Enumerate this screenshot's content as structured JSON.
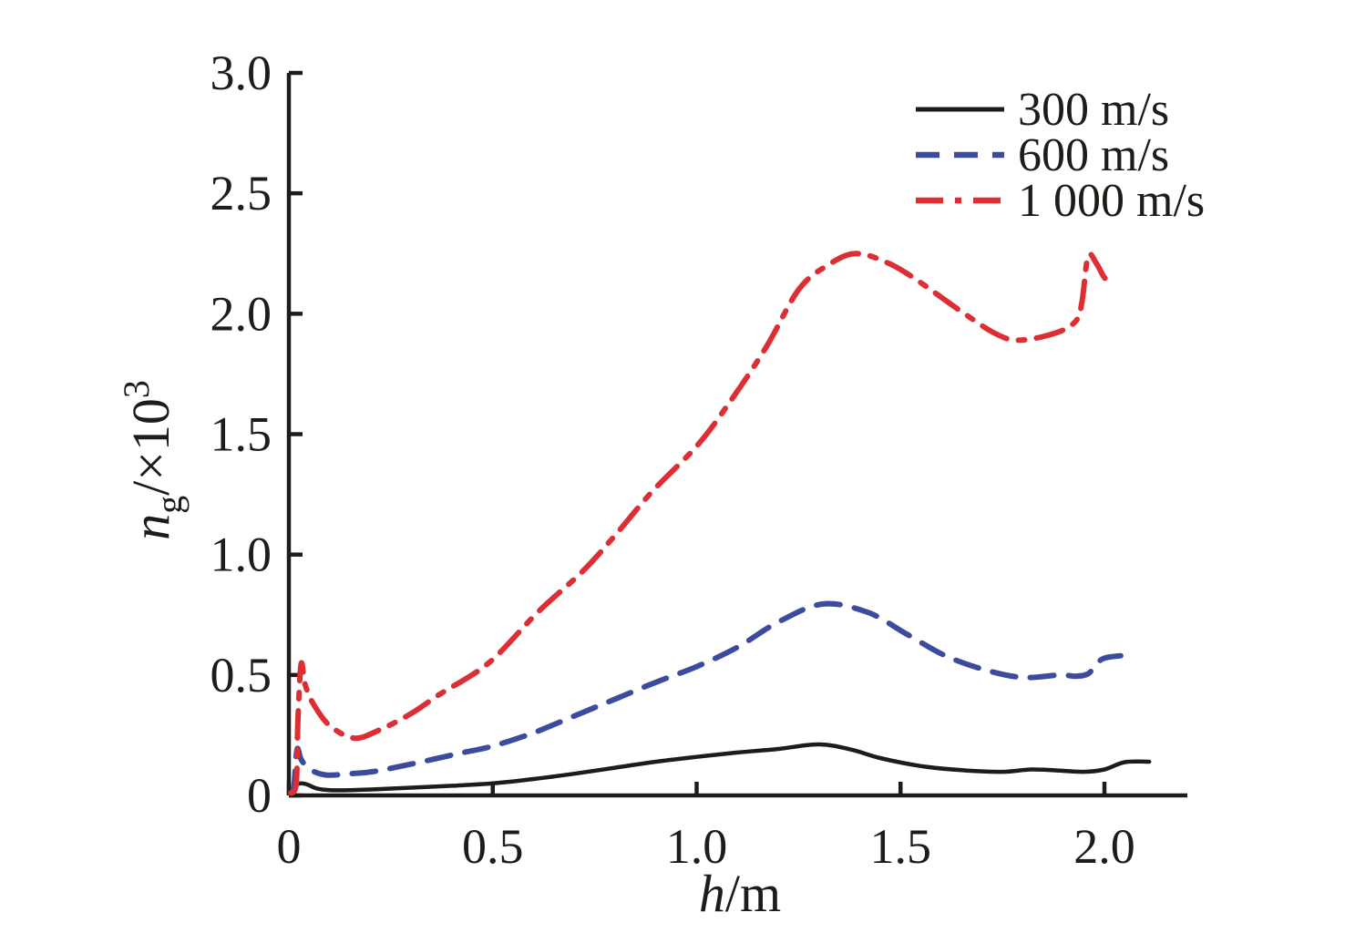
{
  "chart_data": {
    "type": "line",
    "title": "",
    "xlabel_parts": {
      "italic": "h",
      "rest": "/m"
    },
    "ylabel_parts": {
      "italic": "n",
      "sub": "g",
      "rest": "/×10",
      "sup": "3"
    },
    "xlim": [
      0,
      2.2
    ],
    "ylim": [
      0,
      3.0
    ],
    "grid": false,
    "axis_color": "#1e1b18",
    "text_color": "#1e1b18",
    "x_ticks": {
      "values": [
        0,
        0.5,
        1.0,
        1.5,
        2.0
      ],
      "labels": [
        "0",
        "0.5",
        "1.0",
        "1.5",
        "2.0"
      ]
    },
    "y_ticks": {
      "values": [
        0,
        0.5,
        1.0,
        1.5,
        2.0,
        2.5,
        3.0
      ],
      "labels": [
        "0",
        "0.5",
        "1.0",
        "1.5",
        "2.0",
        "2.5",
        "3.0"
      ]
    },
    "legend": {
      "position": "top-right"
    },
    "series": [
      {
        "name": "300 m/s",
        "color": "#1c1c1c",
        "style": "solid",
        "dash": null,
        "width": 4.5,
        "points": [
          [
            0.005,
            0.005
          ],
          [
            0.02,
            0.045
          ],
          [
            0.04,
            0.048
          ],
          [
            0.07,
            0.028
          ],
          [
            0.1,
            0.022
          ],
          [
            0.15,
            0.022
          ],
          [
            0.22,
            0.026
          ],
          [
            0.3,
            0.032
          ],
          [
            0.4,
            0.04
          ],
          [
            0.5,
            0.05
          ],
          [
            0.6,
            0.068
          ],
          [
            0.7,
            0.09
          ],
          [
            0.8,
            0.115
          ],
          [
            0.9,
            0.14
          ],
          [
            1.0,
            0.16
          ],
          [
            1.1,
            0.178
          ],
          [
            1.2,
            0.193
          ],
          [
            1.3,
            0.212
          ],
          [
            1.38,
            0.19
          ],
          [
            1.45,
            0.155
          ],
          [
            1.55,
            0.122
          ],
          [
            1.65,
            0.105
          ],
          [
            1.75,
            0.098
          ],
          [
            1.82,
            0.108
          ],
          [
            1.88,
            0.104
          ],
          [
            1.95,
            0.098
          ],
          [
            2.0,
            0.108
          ],
          [
            2.05,
            0.138
          ],
          [
            2.11,
            0.14
          ]
        ]
      },
      {
        "name": "600 m/s",
        "color": "#3c4b9e",
        "style": "dashed",
        "dash": [
          26,
          16
        ],
        "width": 6,
        "points": [
          [
            0.005,
            0.01
          ],
          [
            0.012,
            0.03
          ],
          [
            0.02,
            0.19
          ],
          [
            0.03,
            0.15
          ],
          [
            0.05,
            0.11
          ],
          [
            0.09,
            0.085
          ],
          [
            0.15,
            0.09
          ],
          [
            0.21,
            0.1
          ],
          [
            0.3,
            0.13
          ],
          [
            0.42,
            0.175
          ],
          [
            0.5,
            0.205
          ],
          [
            0.6,
            0.26
          ],
          [
            0.7,
            0.33
          ],
          [
            0.8,
            0.4
          ],
          [
            0.9,
            0.47
          ],
          [
            1.0,
            0.535
          ],
          [
            1.1,
            0.615
          ],
          [
            1.2,
            0.72
          ],
          [
            1.31,
            0.795
          ],
          [
            1.42,
            0.76
          ],
          [
            1.51,
            0.675
          ],
          [
            1.61,
            0.58
          ],
          [
            1.71,
            0.52
          ],
          [
            1.8,
            0.49
          ],
          [
            1.89,
            0.5
          ],
          [
            1.93,
            0.495
          ],
          [
            1.96,
            0.505
          ],
          [
            1.98,
            0.545
          ],
          [
            2.0,
            0.57
          ],
          [
            2.04,
            0.58
          ]
        ]
      },
      {
        "name": "1 000 m/s",
        "color": "#dd2f33",
        "style": "dashdot",
        "dash": [
          30,
          13,
          7,
          13
        ],
        "width": 6,
        "points": [
          [
            0.005,
            0.01
          ],
          [
            0.018,
            0.05
          ],
          [
            0.022,
            0.3
          ],
          [
            0.03,
            0.545
          ],
          [
            0.04,
            0.46
          ],
          [
            0.06,
            0.38
          ],
          [
            0.1,
            0.29
          ],
          [
            0.16,
            0.238
          ],
          [
            0.22,
            0.27
          ],
          [
            0.3,
            0.34
          ],
          [
            0.37,
            0.42
          ],
          [
            0.49,
            0.55
          ],
          [
            0.61,
            0.76
          ],
          [
            0.72,
            0.93
          ],
          [
            0.8,
            1.08
          ],
          [
            0.89,
            1.26
          ],
          [
            1.0,
            1.45
          ],
          [
            1.08,
            1.63
          ],
          [
            1.17,
            1.86
          ],
          [
            1.25,
            2.1
          ],
          [
            1.32,
            2.2
          ],
          [
            1.39,
            2.25
          ],
          [
            1.47,
            2.21
          ],
          [
            1.54,
            2.14
          ],
          [
            1.64,
            2.02
          ],
          [
            1.73,
            1.92
          ],
          [
            1.79,
            1.89
          ],
          [
            1.88,
            1.92
          ],
          [
            1.93,
            1.97
          ],
          [
            1.945,
            2.05
          ],
          [
            1.96,
            2.24
          ],
          [
            1.98,
            2.21
          ],
          [
            2.0,
            2.15
          ],
          [
            2.02,
            2.12
          ]
        ]
      }
    ]
  }
}
